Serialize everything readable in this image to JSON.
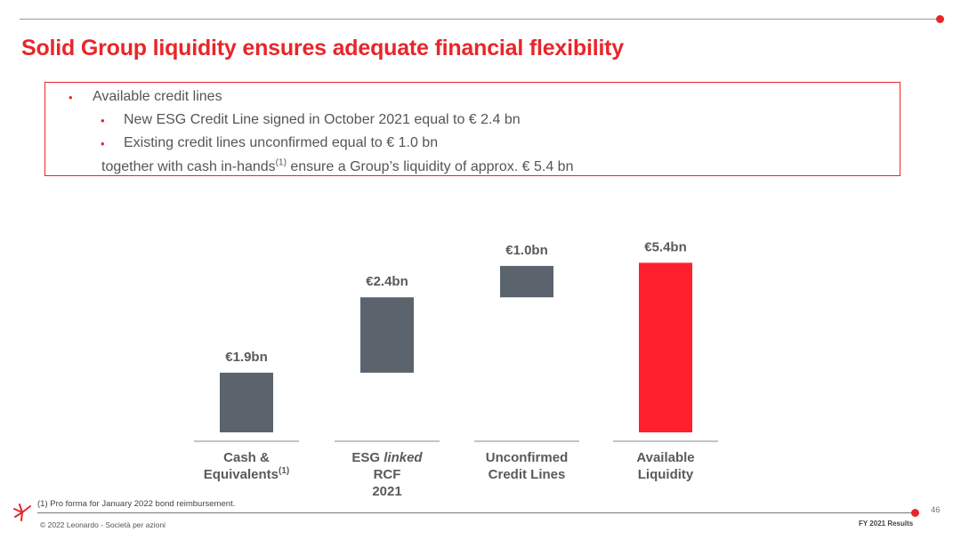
{
  "slide": {
    "title": "Solid Group liquidity ensures adequate financial flexibility",
    "accent_color": "#e8262a",
    "bar_color": "#5b646d"
  },
  "box": {
    "line1": "Available credit lines",
    "line2": "New ESG Credit Line signed in October 2021 equal to € 2.4 bn",
    "line3": "Existing credit lines unconfirmed equal to € 1.0 bn",
    "line4_pre": "together with cash in-hands",
    "line4_sup": "(1)",
    "line4_post": " ensure a Group’s liquidity of approx. € 5.4 bn"
  },
  "chart_data": {
    "type": "bar",
    "subtype": "waterfall",
    "unit": "€bn",
    "categories": [
      "Cash & Equivalents(1)",
      "ESG linked RCF 2021",
      "Unconfirmed Credit Lines",
      "Available Liquidity"
    ],
    "values": [
      1.9,
      2.4,
      1.0,
      5.4
    ],
    "data_labels": [
      "€1.9bn",
      "€2.4bn",
      "€1.0bn",
      "€5.4bn"
    ],
    "total_index": 3,
    "colors": [
      "#5b646d",
      "#5b646d",
      "#5b646d",
      "#ff1f2d"
    ]
  },
  "categories_labels": {
    "cat1_l1": "Cash &",
    "cat1_l2": "Equivalents",
    "cat1_sup": "(1)",
    "cat2_l1a": "ESG ",
    "cat2_l1b": "linked",
    "cat2_l2": "RCF",
    "cat2_l3": "2021",
    "cat3_l1": "Unconfirmed",
    "cat3_l2": "Credit Lines",
    "cat4_l1": "Available",
    "cat4_l2": "Liquidity"
  },
  "footer": {
    "footnote": "(1) Pro forma for January 2022 bond reimbursement.",
    "copyright": "© 2022 Leonardo - Società per azioni",
    "page": "46",
    "results": "FY 2021 Results"
  }
}
